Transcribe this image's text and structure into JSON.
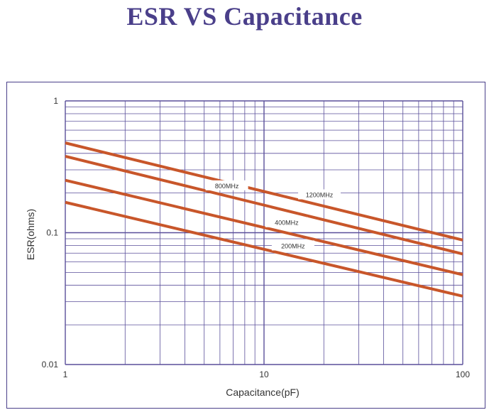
{
  "title": "ESR VS Capacitance",
  "chart_data": {
    "type": "line",
    "title": "ESR VS Capacitance",
    "xlabel": "Capacitance(pF)",
    "ylabel": "ESR(ohms)",
    "xscale": "log",
    "yscale": "log",
    "xlim": [
      1,
      100
    ],
    "ylim": [
      0.01,
      1
    ],
    "xticks": [
      "1",
      "10",
      "100"
    ],
    "yticks": [
      "1",
      "0.1",
      "0.01"
    ],
    "grid": true,
    "legend": "inline labels on lines",
    "series": [
      {
        "name": "1200MHz",
        "x": [
          1,
          100
        ],
        "y": [
          0.48,
          0.088
        ],
        "color": "#c8562a"
      },
      {
        "name": "800MHz",
        "x": [
          1,
          100
        ],
        "y": [
          0.38,
          0.069
        ],
        "color": "#c8562a"
      },
      {
        "name": "400MHz",
        "x": [
          1,
          100
        ],
        "y": [
          0.25,
          0.048
        ],
        "color": "#c8562a"
      },
      {
        "name": "200MHz",
        "x": [
          1,
          100
        ],
        "y": [
          0.17,
          0.033
        ],
        "color": "#c8562a"
      }
    ],
    "label_x": {
      "1200MHz": 19,
      "800MHz": 6.5,
      "400MHz": 13,
      "200MHz": 14
    }
  }
}
